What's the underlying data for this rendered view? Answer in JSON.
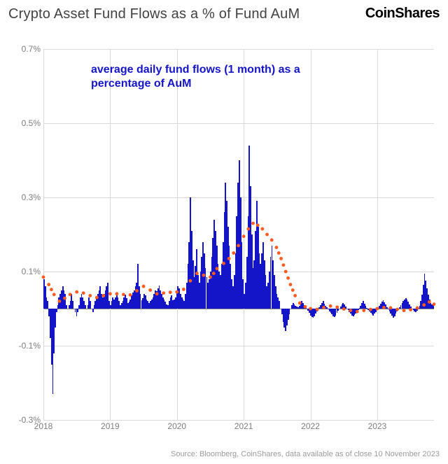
{
  "header": {
    "title": "Crypto Asset Fund Flows as a % of Fund AuM",
    "brand": "CoinShares"
  },
  "chart": {
    "type": "bar_with_line",
    "legend_label": "average daily fund flows (1 month) as a percentage of AuM",
    "legend_color": "#1414c8",
    "legend_fontsize": 16,
    "background_color": "#ffffff",
    "grid_color": "#d9d9d9",
    "axis_label_color": "#7d7d7d",
    "axis_label_fontsize": 12,
    "y": {
      "min": -0.3,
      "max": 0.7,
      "ticks": [
        -0.3,
        -0.1,
        0.1,
        0.3,
        0.5,
        0.7
      ],
      "tick_labels": [
        "-0.3%",
        "-0.1%",
        "0.1%",
        "0.3%",
        "0.5%",
        "0.7%"
      ],
      "zero_line_color": "#888888"
    },
    "x": {
      "min": 2018,
      "max": 2023.85,
      "ticks": [
        2018,
        2019,
        2020,
        2021,
        2022,
        2023
      ],
      "tick_labels": [
        "2018",
        "2019",
        "2020",
        "2021",
        "2022",
        "2023"
      ]
    },
    "bars": {
      "color": "#1414c8",
      "series": [
        0.08,
        0.06,
        0.03,
        0.02,
        -0.02,
        -0.08,
        -0.15,
        -0.23,
        -0.12,
        -0.05,
        -0.01,
        0.01,
        0.03,
        0.04,
        0.05,
        0.06,
        0.05,
        0.04,
        0.01,
        0.0,
        0.01,
        0.02,
        0.04,
        0.02,
        0.0,
        -0.01,
        -0.02,
        -0.01,
        0.01,
        0.03,
        0.04,
        0.03,
        0.02,
        0.01,
        0.0,
        0.01,
        0.03,
        0.02,
        0.0,
        -0.01,
        0.01,
        0.02,
        0.03,
        0.04,
        0.05,
        0.06,
        0.04,
        0.03,
        0.04,
        0.05,
        0.06,
        0.07,
        0.02,
        0.01,
        0.02,
        0.03,
        0.025,
        0.03,
        0.04,
        0.03,
        0.02,
        0.01,
        0.015,
        0.02,
        0.03,
        0.038,
        0.028,
        0.015,
        0.018,
        0.025,
        0.035,
        0.044,
        0.05,
        0.06,
        0.07,
        0.12,
        0.06,
        0.04,
        0.022,
        0.028,
        0.04,
        0.035,
        0.025,
        0.02,
        0.015,
        0.02,
        0.025,
        0.03,
        0.04,
        0.05,
        0.048,
        0.055,
        0.062,
        0.05,
        0.04,
        0.03,
        0.025,
        0.018,
        0.012,
        0.01,
        0.02,
        0.03,
        0.035,
        0.022,
        0.025,
        0.03,
        0.045,
        0.06,
        0.055,
        0.04,
        0.03,
        0.025,
        0.02,
        0.04,
        0.07,
        0.12,
        0.18,
        0.3,
        0.21,
        0.13,
        0.085,
        0.115,
        0.16,
        0.09,
        0.07,
        0.1,
        0.14,
        0.18,
        0.15,
        0.11,
        0.085,
        0.07,
        0.08,
        0.1,
        0.14,
        0.19,
        0.24,
        0.21,
        0.17,
        0.12,
        0.1,
        0.09,
        0.12,
        0.18,
        0.26,
        0.34,
        0.29,
        0.22,
        0.17,
        0.12,
        0.08,
        0.06,
        0.09,
        0.15,
        0.25,
        0.34,
        0.4,
        0.3,
        0.18,
        0.08,
        0.04,
        0.07,
        0.14,
        0.25,
        0.44,
        0.33,
        0.2,
        0.11,
        0.13,
        0.21,
        0.29,
        0.22,
        0.15,
        0.12,
        0.15,
        0.18,
        0.13,
        0.09,
        0.06,
        0.07,
        0.1,
        0.14,
        0.17,
        0.13,
        0.09,
        0.06,
        0.04,
        0.03,
        0.02,
        0.0,
        -0.015,
        -0.035,
        -0.05,
        -0.06,
        -0.045,
        -0.03,
        -0.015,
        0.0,
        0.01,
        0.015,
        0.012,
        0.008,
        0.005,
        0.003,
        0.008,
        0.015,
        0.02,
        0.015,
        0.01,
        0.005,
        0.0,
        -0.006,
        -0.012,
        -0.018,
        -0.022,
        -0.025,
        -0.02,
        -0.014,
        -0.008,
        -0.003,
        0.003,
        0.01,
        0.015,
        0.02,
        0.014,
        0.008,
        0.003,
        -0.002,
        -0.008,
        -0.012,
        -0.015,
        -0.02,
        -0.022,
        -0.018,
        -0.012,
        -0.006,
        0.0,
        0.006,
        0.012,
        0.016,
        0.012,
        0.006,
        0.0,
        -0.004,
        -0.01,
        -0.014,
        -0.018,
        -0.021,
        -0.017,
        -0.013,
        -0.008,
        -0.003,
        0.002,
        0.008,
        0.015,
        0.02,
        0.014,
        0.008,
        0.002,
        -0.003,
        -0.007,
        -0.012,
        -0.015,
        -0.018,
        -0.014,
        -0.009,
        -0.004,
        0.001,
        0.007,
        0.013,
        0.018,
        0.022,
        0.017,
        0.011,
        0.004,
        -0.001,
        -0.007,
        -0.013,
        -0.019,
        -0.025,
        -0.02,
        -0.014,
        -0.008,
        -0.002,
        0.004,
        0.01,
        0.015,
        0.02,
        0.024,
        0.028,
        0.024,
        0.018,
        0.012,
        0.006,
        0.0,
        -0.003,
        -0.007,
        -0.01,
        -0.005,
        0.001,
        0.008,
        0.02,
        0.038,
        0.065,
        0.095,
        0.075,
        0.055,
        0.038,
        0.024,
        0.016,
        0.012,
        0.01
      ]
    },
    "line": {
      "color": "#ff5a1f",
      "style": "dotted",
      "marker_radius": 2.4,
      "series": [
        [
          2018.0,
          0.085
        ],
        [
          2018.08,
          0.065
        ],
        [
          2018.16,
          0.038
        ],
        [
          2018.24,
          0.02
        ],
        [
          2018.32,
          0.028
        ],
        [
          2018.4,
          0.038
        ],
        [
          2018.5,
          0.045
        ],
        [
          2018.6,
          0.042
        ],
        [
          2018.7,
          0.035
        ],
        [
          2018.8,
          0.03
        ],
        [
          2018.9,
          0.035
        ],
        [
          2019.0,
          0.04
        ],
        [
          2019.1,
          0.04
        ],
        [
          2019.2,
          0.038
        ],
        [
          2019.3,
          0.037
        ],
        [
          2019.4,
          0.048
        ],
        [
          2019.5,
          0.06
        ],
        [
          2019.6,
          0.05
        ],
        [
          2019.7,
          0.04
        ],
        [
          2019.8,
          0.042
        ],
        [
          2019.9,
          0.044
        ],
        [
          2020.0,
          0.045
        ],
        [
          2020.1,
          0.052
        ],
        [
          2020.2,
          0.075
        ],
        [
          2020.3,
          0.095
        ],
        [
          2020.4,
          0.09
        ],
        [
          2020.5,
          0.085
        ],
        [
          2020.55,
          0.095
        ],
        [
          2020.6,
          0.108
        ],
        [
          2020.7,
          0.122
        ],
        [
          2020.78,
          0.135
        ],
        [
          2020.85,
          0.15
        ],
        [
          2020.92,
          0.17
        ],
        [
          2021.0,
          0.195
        ],
        [
          2021.07,
          0.215
        ],
        [
          2021.14,
          0.23
        ],
        [
          2021.21,
          0.225
        ],
        [
          2021.28,
          0.215
        ],
        [
          2021.35,
          0.2
        ],
        [
          2021.42,
          0.185
        ],
        [
          2021.49,
          0.165
        ],
        [
          2021.56,
          0.135
        ],
        [
          2021.63,
          0.1
        ],
        [
          2021.7,
          0.065
        ],
        [
          2021.77,
          0.035
        ],
        [
          2021.84,
          0.015
        ],
        [
          2021.92,
          0.005
        ],
        [
          2022.0,
          0.0
        ],
        [
          2022.1,
          -0.002
        ],
        [
          2022.2,
          0.003
        ],
        [
          2022.3,
          0.007
        ],
        [
          2022.4,
          0.004
        ],
        [
          2022.5,
          -0.001
        ],
        [
          2022.6,
          -0.005
        ],
        [
          2022.7,
          -0.008
        ],
        [
          2022.8,
          -0.005
        ],
        [
          2022.9,
          -0.002
        ],
        [
          2023.0,
          0.0
        ],
        [
          2023.1,
          0.003
        ],
        [
          2023.2,
          0.002
        ],
        [
          2023.3,
          -0.002
        ],
        [
          2023.4,
          -0.005
        ],
        [
          2023.5,
          -0.003
        ],
        [
          2023.6,
          0.002
        ],
        [
          2023.7,
          0.01
        ],
        [
          2023.78,
          0.018
        ],
        [
          2023.85,
          0.012
        ]
      ]
    }
  },
  "footer": {
    "text": "Source: Bloomberg, CoinShares, data available as of close 10 November 2023",
    "color": "#9a9a9a",
    "fontsize": 11
  }
}
